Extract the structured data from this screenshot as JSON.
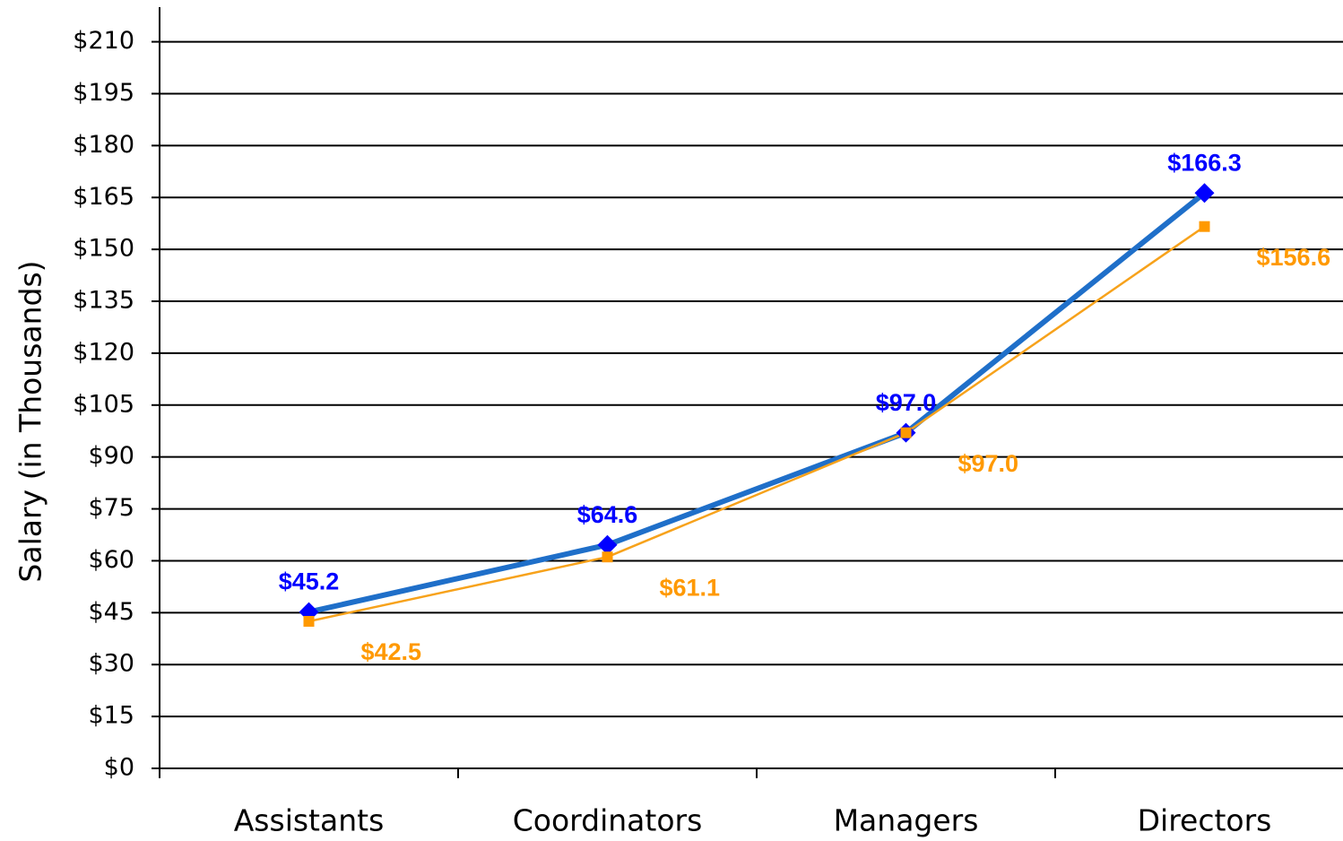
{
  "chart_data": {
    "type": "line",
    "y_label": "Salary (in Thousands)",
    "categories": [
      "Assistants",
      "Coordinators",
      "Managers",
      "Directors"
    ],
    "series": [
      {
        "color": "#1f6fc9",
        "marker_color": "#0000ff",
        "marker": "diamond",
        "values": [
          45.2,
          64.6,
          97.0,
          166.3
        ],
        "value_labels": [
          "$45.2",
          "$64.6",
          "$97.0",
          "$166.3"
        ]
      },
      {
        "color": "#f7a21b",
        "marker_color": "#ff9900",
        "marker": "square",
        "values": [
          42.5,
          61.1,
          97.0,
          156.6
        ],
        "value_labels": [
          "$42.5",
          "$61.1",
          "$97.0",
          "$156.6"
        ]
      }
    ],
    "ylim": [
      0,
      220
    ],
    "yticks": [
      {
        "value": 0,
        "label": "$0"
      },
      {
        "value": 15,
        "label": "$15"
      },
      {
        "value": 30,
        "label": "$30"
      },
      {
        "value": 45,
        "label": "$45"
      },
      {
        "value": 60,
        "label": "$60"
      },
      {
        "value": 75,
        "label": "$75"
      },
      {
        "value": 90,
        "label": "$90"
      },
      {
        "value": 105,
        "label": "$105"
      },
      {
        "value": 120,
        "label": "$120"
      },
      {
        "value": 135,
        "label": "$135"
      },
      {
        "value": 150,
        "label": "$150"
      },
      {
        "value": 165,
        "label": "$165"
      },
      {
        "value": 180,
        "label": "$180"
      },
      {
        "value": 195,
        "label": "$195"
      },
      {
        "value": 210,
        "label": "$210"
      }
    ],
    "grid": true
  }
}
